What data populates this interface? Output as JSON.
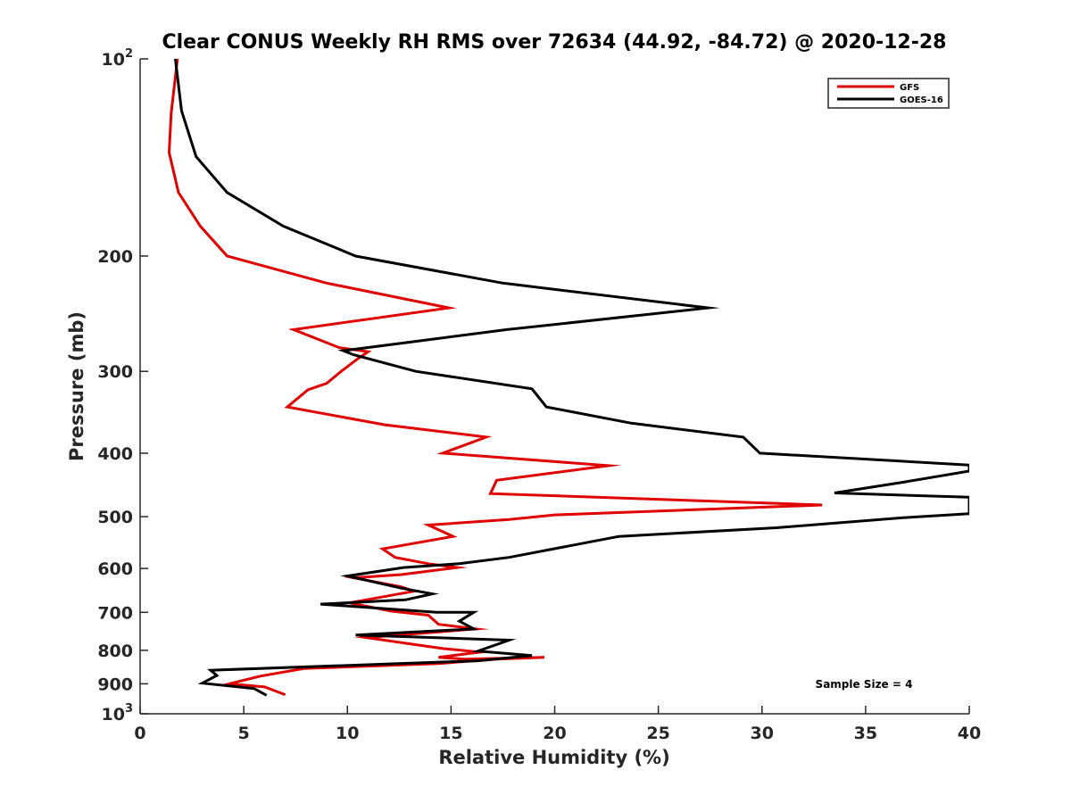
{
  "chart_data": {
    "type": "line",
    "title": "Clear CONUS Weekly RH RMS over 72634 (44.92, -84.72) @ 2020-12-28",
    "xlabel": "Relative Humidity (%)",
    "ylabel": "Pressure (mb)",
    "xlim": [
      0,
      40
    ],
    "ylim": [
      100,
      1000
    ],
    "yscale": "log",
    "yreversed": true,
    "grid": false,
    "legend_position": "top-right",
    "x_ticks": [
      0,
      5,
      10,
      15,
      20,
      25,
      30,
      35,
      40
    ],
    "x_tick_labels": [
      "0",
      "5",
      "10",
      "15",
      "20",
      "25",
      "30",
      "35",
      "40"
    ],
    "y_ticks": [
      {
        "value": 100,
        "base": "10",
        "exp": "2",
        "label": ""
      },
      {
        "value": 200,
        "label": "200"
      },
      {
        "value": 300,
        "label": "300"
      },
      {
        "value": 400,
        "label": "400"
      },
      {
        "value": 500,
        "label": "500"
      },
      {
        "value": 600,
        "label": "600"
      },
      {
        "value": 700,
        "label": "700"
      },
      {
        "value": 800,
        "label": "800"
      },
      {
        "value": 900,
        "label": "900"
      },
      {
        "value": 1000,
        "base": "10",
        "exp": "3",
        "label": ""
      }
    ],
    "annotation": "Sample Size = 4",
    "series": [
      {
        "name": "GFS",
        "color": "#e00000",
        "points": [
          [
            1.8,
            100
          ],
          [
            1.5,
            121
          ],
          [
            1.4,
            139
          ],
          [
            1.85,
            160
          ],
          [
            2.9,
            180
          ],
          [
            4.2,
            200
          ],
          [
            9.0,
            220
          ],
          [
            14.9,
            240
          ],
          [
            7.4,
            259
          ],
          [
            9.6,
            276
          ],
          [
            11.0,
            280
          ],
          [
            10.5,
            287
          ],
          [
            9.7,
            300
          ],
          [
            9.0,
            313
          ],
          [
            8.1,
            320
          ],
          [
            7.1,
            340
          ],
          [
            11.8,
            362
          ],
          [
            16.7,
            378
          ],
          [
            14.6,
            400
          ],
          [
            22.6,
            418
          ],
          [
            17.2,
            440
          ],
          [
            16.9,
            461
          ],
          [
            32.9,
            480
          ],
          [
            20.0,
            497
          ],
          [
            17.8,
            505
          ],
          [
            13.9,
            515
          ],
          [
            15.1,
            536
          ],
          [
            11.7,
            560
          ],
          [
            12.3,
            577
          ],
          [
            13.9,
            590
          ],
          [
            15.3,
            598
          ],
          [
            12.6,
            613
          ],
          [
            10.3,
            620
          ],
          [
            12.6,
            640
          ],
          [
            13.2,
            650
          ],
          [
            10.1,
            677
          ],
          [
            12.1,
            697
          ],
          [
            13.9,
            707
          ],
          [
            14.4,
            730
          ],
          [
            16.2,
            742
          ],
          [
            10.9,
            765
          ],
          [
            14.6,
            795
          ],
          [
            16.4,
            805
          ],
          [
            14.4,
            820
          ],
          [
            15.6,
            825
          ],
          [
            19.5,
            820
          ],
          [
            17.2,
            825
          ],
          [
            14.4,
            838
          ],
          [
            7.9,
            853
          ],
          [
            5.8,
            876
          ],
          [
            4.3,
            900
          ],
          [
            6.0,
            910
          ],
          [
            7.0,
            935
          ]
        ]
      },
      {
        "name": "GOES-16",
        "color": "#000000",
        "points": [
          [
            1.7,
            100
          ],
          [
            2.0,
            120
          ],
          [
            2.7,
            141
          ],
          [
            4.2,
            160
          ],
          [
            6.9,
            180
          ],
          [
            10.4,
            200
          ],
          [
            17.5,
            220
          ],
          [
            27.4,
            240
          ],
          [
            17.7,
            259
          ],
          [
            9.8,
            279
          ],
          [
            10.3,
            283
          ],
          [
            13.3,
            300
          ],
          [
            18.9,
            319
          ],
          [
            19.6,
            340
          ],
          [
            23.7,
            360
          ],
          [
            29.1,
            378
          ],
          [
            29.9,
            400
          ],
          [
            40,
            417
          ],
          [
            40,
            426
          ],
          [
            36.8,
            443
          ],
          [
            33.5,
            460
          ],
          [
            40,
            467
          ],
          [
            40,
            495
          ],
          [
            36.8,
            502
          ],
          [
            30.7,
            520
          ],
          [
            23.1,
            536
          ],
          [
            17.8,
            577
          ],
          [
            15.4,
            590
          ],
          [
            12.7,
            598
          ],
          [
            10.0,
            616
          ],
          [
            12.6,
            643
          ],
          [
            14.1,
            656
          ],
          [
            12.8,
            670
          ],
          [
            8.7,
            680
          ],
          [
            14.3,
            700
          ],
          [
            16.1,
            700
          ],
          [
            15.4,
            722
          ],
          [
            16.1,
            742
          ],
          [
            10.4,
            758
          ],
          [
            17.8,
            772
          ],
          [
            16.3,
            802
          ],
          [
            18.9,
            815
          ],
          [
            16.3,
            830
          ],
          [
            3.4,
            858
          ],
          [
            3.7,
            874
          ],
          [
            3.0,
            898
          ],
          [
            5.5,
            915
          ],
          [
            6.1,
            937
          ]
        ]
      }
    ]
  }
}
